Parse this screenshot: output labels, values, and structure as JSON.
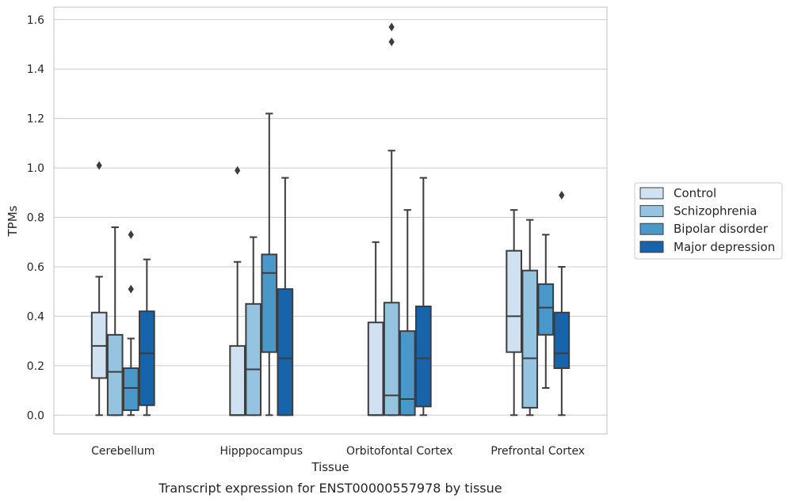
{
  "chart_data": {
    "type": "box",
    "xlabel": "Tissue",
    "ylabel": "TPMs",
    "caption": "Transcript expression for ENST00000557978 by tissue",
    "ylim": [
      -0.075,
      1.65
    ],
    "yticks": [
      0.0,
      0.2,
      0.4,
      0.6,
      0.8,
      1.0,
      1.2,
      1.4,
      1.6
    ],
    "ytick_labels": [
      "0.0",
      "0.2",
      "0.4",
      "0.6",
      "0.8",
      "1.0",
      "1.2",
      "1.4",
      "1.6"
    ],
    "grid": "horizontal",
    "legend_position": "right-outside",
    "categories": [
      "Cerebellum",
      "Hipppocampus",
      "Orbitofontal Cortex",
      "Prefrontal Cortex"
    ],
    "series": [
      {
        "name": "Control",
        "color": "#d0e1f2",
        "boxes": [
          {
            "whisker_low": 0.0,
            "q1": 0.15,
            "median": 0.28,
            "q3": 0.415,
            "whisker_high": 0.56,
            "outliers": [
              1.01
            ]
          },
          {
            "whisker_low": 0.0,
            "q1": 0.0,
            "median": 0.0,
            "q3": 0.28,
            "whisker_high": 0.62,
            "outliers": [
              0.99
            ]
          },
          {
            "whisker_low": 0.0,
            "q1": 0.0,
            "median": 0.0,
            "q3": 0.375,
            "whisker_high": 0.7,
            "outliers": []
          },
          {
            "whisker_low": 0.0,
            "q1": 0.255,
            "median": 0.4,
            "q3": 0.665,
            "whisker_high": 0.83,
            "outliers": []
          }
        ]
      },
      {
        "name": "Schizophrenia",
        "color": "#94c4df",
        "boxes": [
          {
            "whisker_low": 0.0,
            "q1": 0.0,
            "median": 0.175,
            "q3": 0.325,
            "whisker_high": 0.76,
            "outliers": []
          },
          {
            "whisker_low": 0.0,
            "q1": 0.0,
            "median": 0.185,
            "q3": 0.45,
            "whisker_high": 0.72,
            "outliers": []
          },
          {
            "whisker_low": 0.0,
            "q1": 0.0,
            "median": 0.08,
            "q3": 0.455,
            "whisker_high": 1.07,
            "outliers": [
              1.51,
              1.57
            ]
          },
          {
            "whisker_low": 0.0,
            "q1": 0.03,
            "median": 0.23,
            "q3": 0.585,
            "whisker_high": 0.79,
            "outliers": []
          }
        ]
      },
      {
        "name": "Bipolar disorder",
        "color": "#4a98c9",
        "boxes": [
          {
            "whisker_low": 0.0,
            "q1": 0.02,
            "median": 0.11,
            "q3": 0.19,
            "whisker_high": 0.31,
            "outliers": [
              0.51,
              0.73
            ]
          },
          {
            "whisker_low": 0.0,
            "q1": 0.255,
            "median": 0.575,
            "q3": 0.65,
            "whisker_high": 1.22,
            "outliers": []
          },
          {
            "whisker_low": 0.0,
            "q1": 0.0,
            "median": 0.065,
            "q3": 0.34,
            "whisker_high": 0.83,
            "outliers": []
          },
          {
            "whisker_low": 0.11,
            "q1": 0.325,
            "median": 0.435,
            "q3": 0.53,
            "whisker_high": 0.73,
            "outliers": []
          }
        ]
      },
      {
        "name": "Major depression",
        "color": "#1764ab",
        "boxes": [
          {
            "whisker_low": 0.0,
            "q1": 0.04,
            "median": 0.25,
            "q3": 0.42,
            "whisker_high": 0.63,
            "outliers": []
          },
          {
            "whisker_low": 0.0,
            "q1": 0.0,
            "median": 0.23,
            "q3": 0.51,
            "whisker_high": 0.96,
            "outliers": []
          },
          {
            "whisker_low": 0.0,
            "q1": 0.035,
            "median": 0.23,
            "q3": 0.44,
            "whisker_high": 0.96,
            "outliers": []
          },
          {
            "whisker_low": 0.0,
            "q1": 0.19,
            "median": 0.25,
            "q3": 0.415,
            "whisker_high": 0.6,
            "outliers": [
              0.89
            ]
          }
        ]
      }
    ]
  }
}
